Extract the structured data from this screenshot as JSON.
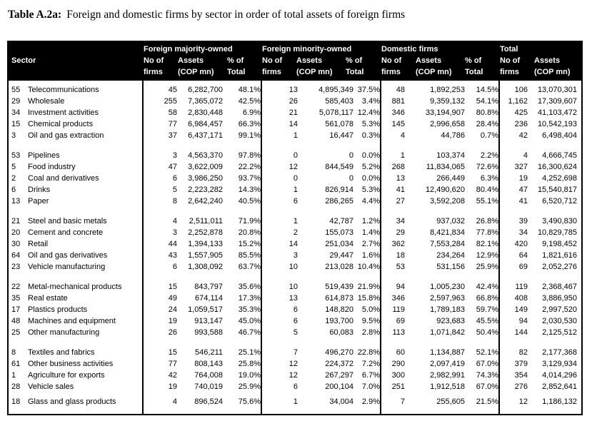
{
  "title": {
    "prefix": "Table A.2a:",
    "text": "Foreign and domestic firms by sector in order of total assets of foreign firms"
  },
  "colors": {
    "header_bg": "#000000",
    "header_text": "#ffffff",
    "body_text": "#000000",
    "page_bg": "#ffffff"
  },
  "table": {
    "sector_header": "Sector",
    "groups": [
      {
        "name": "Foreign majority-owned",
        "subcols": [
          {
            "top": "No of",
            "bottom": "firms"
          },
          {
            "top": "Assets",
            "bottom": "(COP mn)"
          },
          {
            "top": "% of",
            "bottom": "Total"
          }
        ]
      },
      {
        "name": "Foreign minority-owned",
        "subcols": [
          {
            "top": "No of",
            "bottom": "firms"
          },
          {
            "top": "Assets",
            "bottom": "(COP mn)"
          },
          {
            "top": "% of",
            "bottom": "Total"
          }
        ]
      },
      {
        "name": "Domestic firms",
        "subcols": [
          {
            "top": "No of",
            "bottom": "firms"
          },
          {
            "top": "Assets",
            "bottom": "(COP mn)"
          },
          {
            "top": "% of",
            "bottom": "Total"
          }
        ]
      },
      {
        "name": "Total",
        "subcols": [
          {
            "top": "No of",
            "bottom": "firms"
          },
          {
            "top": "Assets",
            "bottom": "(COP mn)"
          }
        ]
      }
    ],
    "row_groups": [
      [
        {
          "code": "55",
          "sector": "Telecommunications",
          "values": [
            "45",
            "6,282,700",
            "48.1%",
            "13",
            "4,895,349",
            "37.5%",
            "48",
            "1,892,253",
            "14.5%",
            "106",
            "13,070,301"
          ]
        },
        {
          "code": "29",
          "sector": "Wholesale",
          "values": [
            "255",
            "7,365,072",
            "42.5%",
            "26",
            "585,403",
            "3.4%",
            "881",
            "9,359,132",
            "54.1%",
            "1,162",
            "17,309,607"
          ]
        },
        {
          "code": "34",
          "sector": "Investment activities",
          "values": [
            "58",
            "2,830,448",
            "6.9%",
            "21",
            "5,078,117",
            "12.4%",
            "346",
            "33,194,907",
            "80.8%",
            "425",
            "41,103,472"
          ]
        },
        {
          "code": "15",
          "sector": "Chemical products",
          "values": [
            "77",
            "6,984,457",
            "66.3%",
            "14",
            "561,078",
            "5.3%",
            "145",
            "2,996,658",
            "28.4%",
            "236",
            "10,542,193"
          ]
        },
        {
          "code": "3",
          "sector": "Oil and gas extraction",
          "values": [
            "37",
            "6,437,171",
            "99.1%",
            "1",
            "16,447",
            "0.3%",
            "4",
            "44,786",
            "0.7%",
            "42",
            "6,498,404"
          ]
        }
      ],
      [
        {
          "code": "53",
          "sector": "Pipelines",
          "values": [
            "3",
            "4,563,370",
            "97.8%",
            "0",
            "0",
            "0.0%",
            "1",
            "103,374",
            "2.2%",
            "4",
            "4,666,745"
          ]
        },
        {
          "code": "5",
          "sector": "Food industry",
          "values": [
            "47",
            "3,622,009",
            "22.2%",
            "12",
            "844,549",
            "5.2%",
            "268",
            "11,834,065",
            "72.6%",
            "327",
            "16,300,624"
          ]
        },
        {
          "code": "2",
          "sector": "Coal and derivatives",
          "values": [
            "6",
            "3,986,250",
            "93.7%",
            "0",
            "0",
            "0.0%",
            "13",
            "266,449",
            "6.3%",
            "19",
            "4,252,698"
          ]
        },
        {
          "code": "6",
          "sector": "Drinks",
          "values": [
            "5",
            "2,223,282",
            "14.3%",
            "1",
            "826,914",
            "5.3%",
            "41",
            "12,490,620",
            "80.4%",
            "47",
            "15,540,817"
          ]
        },
        {
          "code": "13",
          "sector": "Paper",
          "values": [
            "8",
            "2,642,240",
            "40.5%",
            "6",
            "286,265",
            "4.4%",
            "27",
            "3,592,208",
            "55.1%",
            "41",
            "6,520,712"
          ]
        }
      ],
      [
        {
          "code": "21",
          "sector": "Steel and basic metals",
          "values": [
            "4",
            "2,511,011",
            "71.9%",
            "1",
            "42,787",
            "1.2%",
            "34",
            "937,032",
            "26.8%",
            "39",
            "3,490,830"
          ]
        },
        {
          "code": "20",
          "sector": "Cement and concrete",
          "values": [
            "3",
            "2,252,878",
            "20.8%",
            "2",
            "155,073",
            "1.4%",
            "29",
            "8,421,834",
            "77.8%",
            "34",
            "10,829,785"
          ]
        },
        {
          "code": "30",
          "sector": "Retail",
          "values": [
            "44",
            "1,394,133",
            "15.2%",
            "14",
            "251,034",
            "2.7%",
            "362",
            "7,553,284",
            "82.1%",
            "420",
            "9,198,452"
          ]
        },
        {
          "code": "64",
          "sector": "Oil and gas derivatives",
          "values": [
            "43",
            "1,557,905",
            "85.5%",
            "3",
            "29,447",
            "1.6%",
            "18",
            "234,264",
            "12.9%",
            "64",
            "1,821,616"
          ]
        },
        {
          "code": "23",
          "sector": "Vehicle manufacturing",
          "values": [
            "6",
            "1,308,092",
            "63.7%",
            "10",
            "213,028",
            "10.4%",
            "53",
            "531,156",
            "25.9%",
            "69",
            "2,052,276"
          ]
        }
      ],
      [
        {
          "code": "22",
          "sector": "Metal-mechanical products",
          "values": [
            "15",
            "843,797",
            "35.6%",
            "10",
            "519,439",
            "21.9%",
            "94",
            "1,005,230",
            "42.4%",
            "119",
            "2,368,467"
          ]
        },
        {
          "code": "35",
          "sector": "Real estate",
          "values": [
            "49",
            "674,114",
            "17.3%",
            "13",
            "614,873",
            "15.8%",
            "346",
            "2,597,963",
            "66.8%",
            "408",
            "3,886,950"
          ]
        },
        {
          "code": "17",
          "sector": "Plastics products",
          "values": [
            "24",
            "1,059,517",
            "35.3%",
            "6",
            "148,820",
            "5.0%",
            "119",
            "1,789,183",
            "59.7%",
            "149",
            "2,997,520"
          ]
        },
        {
          "code": "48",
          "sector": "Machines and equipment",
          "values": [
            "19",
            "913,147",
            "45.0%",
            "6",
            "193,700",
            "9.5%",
            "69",
            "923,683",
            "45.5%",
            "94",
            "2,030,530"
          ]
        },
        {
          "code": "25",
          "sector": "Other manufacturing",
          "values": [
            "26",
            "993,588",
            "46.7%",
            "5",
            "60,083",
            "2.8%",
            "113",
            "1,071,842",
            "50.4%",
            "144",
            "2,125,512"
          ]
        }
      ],
      [
        {
          "code": "8",
          "sector": "Textiles and fabrics",
          "values": [
            "15",
            "546,211",
            "25.1%",
            "7",
            "496,270",
            "22.8%",
            "60",
            "1,134,887",
            "52.1%",
            "82",
            "2,177,368"
          ]
        },
        {
          "code": "61",
          "sector": "Other business activities",
          "values": [
            "77",
            "808,143",
            "25.8%",
            "12",
            "224,372",
            "7.2%",
            "290",
            "2,097,419",
            "67.0%",
            "379",
            "3,129,934"
          ]
        },
        {
          "code": "1",
          "sector": "Agriculture for exports",
          "values": [
            "42",
            "764,008",
            "19.0%",
            "12",
            "267,297",
            "6.7%",
            "300",
            "2,982,991",
            "74.3%",
            "354",
            "4,014,296"
          ]
        },
        {
          "code": "28",
          "sector": "Vehicle sales",
          "values": [
            "19",
            "740,019",
            "25.9%",
            "6",
            "200,104",
            "7.0%",
            "251",
            "1,912,518",
            "67.0%",
            "276",
            "2,852,641"
          ]
        },
        {
          "code": "18",
          "sector": "Glass and glass products",
          "values": [
            "4",
            "896,524",
            "75.6%",
            "1",
            "34,004",
            "2.9%",
            "7",
            "255,605",
            "21.5%",
            "12",
            "1,186,132"
          ]
        }
      ]
    ]
  }
}
